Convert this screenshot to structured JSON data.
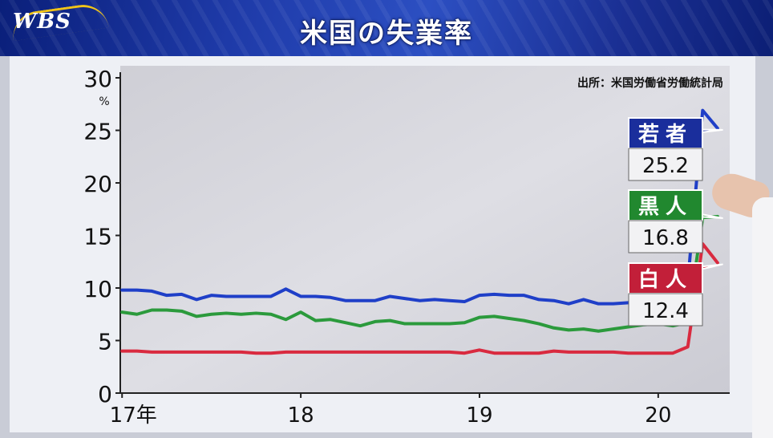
{
  "logo": "WBS",
  "title": "米国の失業率",
  "chart_data": {
    "type": "line",
    "title": "米国の失業率",
    "source": "出所：米国労働省労働統計局",
    "ylabel": "%",
    "ylim": [
      0,
      30
    ],
    "yticks": [
      "0",
      "5",
      "10",
      "15",
      "20",
      "25",
      "30"
    ],
    "xticks": [
      {
        "label": "17年",
        "x": 2017.0
      },
      {
        "label": "18",
        "x": 2018.0
      },
      {
        "label": "19",
        "x": 2019.0
      },
      {
        "label": "20",
        "x": 2020.0
      }
    ],
    "xlim": [
      2016.99,
      2020.4
    ],
    "x_step": 0.0833,
    "grid": false,
    "series": [
      {
        "name": "若者",
        "latest_label": "25.2",
        "color": "#1f3fc8",
        "label_color": "#1a2e9c",
        "values": [
          9.8,
          9.8,
          9.7,
          9.3,
          9.4,
          8.9,
          9.3,
          9.2,
          9.2,
          9.2,
          9.2,
          9.9,
          9.2,
          9.2,
          9.1,
          8.8,
          8.8,
          8.8,
          9.2,
          9.0,
          8.8,
          8.9,
          8.8,
          8.7,
          9.3,
          9.4,
          9.3,
          9.3,
          8.9,
          8.8,
          8.5,
          8.9,
          8.5,
          8.5,
          8.6,
          8.7,
          8.6,
          8.7,
          10.5,
          26.9,
          25.2
        ]
      },
      {
        "name": "黒人",
        "latest_label": "16.8",
        "color": "#2b9a3c",
        "label_color": "#21882f",
        "values": [
          7.7,
          7.5,
          7.9,
          7.9,
          7.8,
          7.3,
          7.5,
          7.6,
          7.5,
          7.6,
          7.5,
          7.0,
          7.7,
          6.9,
          7.0,
          6.7,
          6.4,
          6.8,
          6.9,
          6.6,
          6.6,
          6.6,
          6.6,
          6.7,
          7.2,
          7.3,
          7.1,
          6.9,
          6.6,
          6.2,
          6.0,
          6.1,
          5.9,
          6.1,
          6.3,
          6.5,
          6.6,
          6.4,
          6.7,
          16.7,
          16.8
        ]
      },
      {
        "name": "白人",
        "latest_label": "12.4",
        "color": "#d92a3f",
        "label_color": "#c21f39",
        "values": [
          4.0,
          4.0,
          3.9,
          3.9,
          3.9,
          3.9,
          3.9,
          3.9,
          3.9,
          3.8,
          3.8,
          3.9,
          3.9,
          3.9,
          3.9,
          3.9,
          3.9,
          3.9,
          3.9,
          3.9,
          3.9,
          3.9,
          3.9,
          3.8,
          4.1,
          3.8,
          3.8,
          3.8,
          3.8,
          4.0,
          3.9,
          3.9,
          3.9,
          3.9,
          3.8,
          3.8,
          3.8,
          3.8,
          4.4,
          14.2,
          12.4
        ]
      }
    ]
  }
}
